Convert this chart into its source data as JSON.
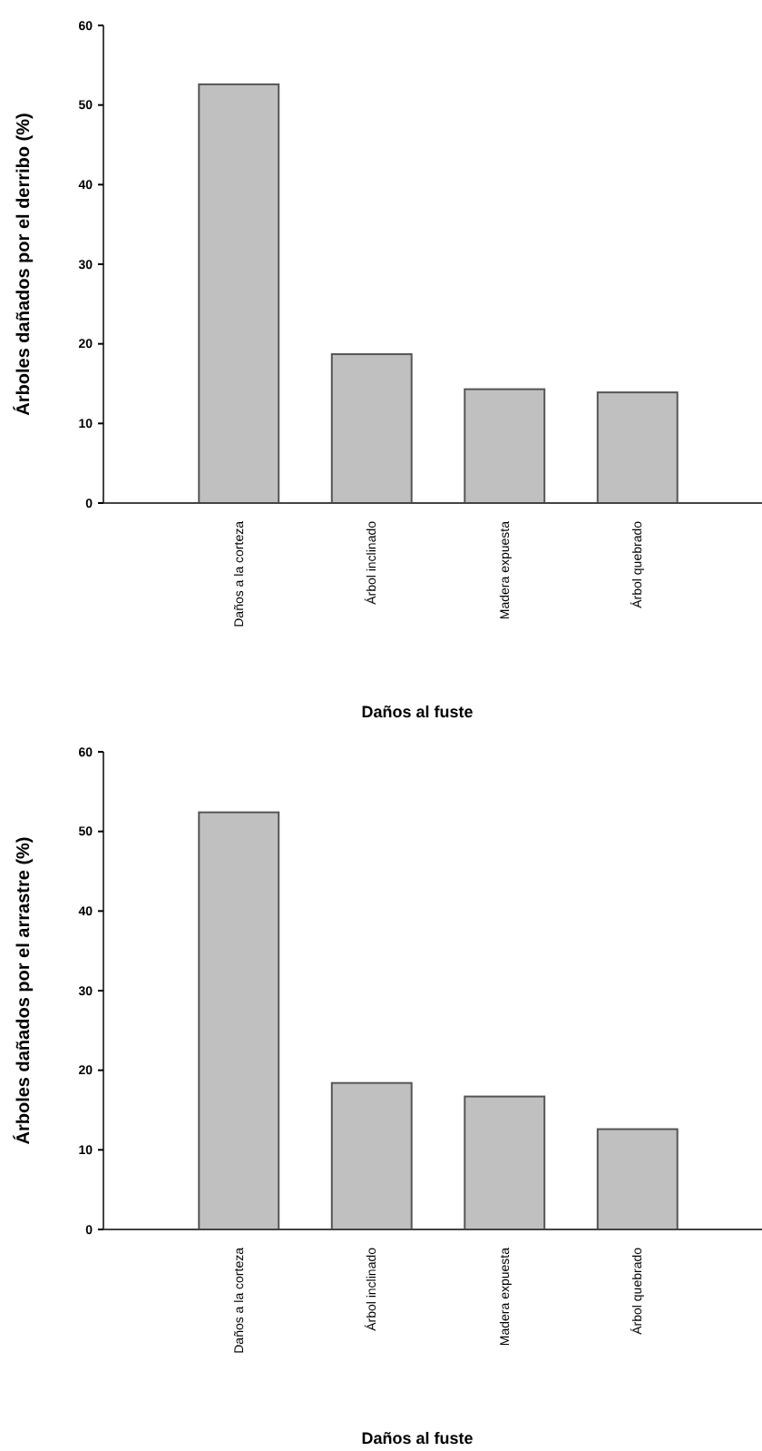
{
  "chart_data": [
    {
      "type": "bar",
      "xlabel": "Daños al fuste",
      "ylabel": "Árboles dañados por el derribo (%)",
      "categories": [
        "Daños a la corteza",
        "Árbol inclinado",
        "Madera expuesta",
        "Árbol quebrado"
      ],
      "values": [
        52.6,
        18.7,
        14.3,
        13.9
      ],
      "color": "#c0c0c0",
      "ylim": [
        0,
        60
      ],
      "yticks": [
        0,
        10,
        20,
        30,
        40,
        50,
        60
      ]
    },
    {
      "type": "bar",
      "xlabel": "Daños al fuste",
      "ylabel": "Árboles dañados por el arrastre (%)",
      "categories": [
        "Daños a la corteza",
        "Árbol inclinado",
        "Madera expuesta",
        "Árbol quebrado"
      ],
      "values": [
        52.4,
        18.4,
        16.7,
        12.6
      ],
      "color": "#c0c0c0",
      "ylim": [
        0,
        60
      ],
      "yticks": [
        0,
        10,
        20,
        30,
        40,
        50,
        60
      ]
    }
  ]
}
